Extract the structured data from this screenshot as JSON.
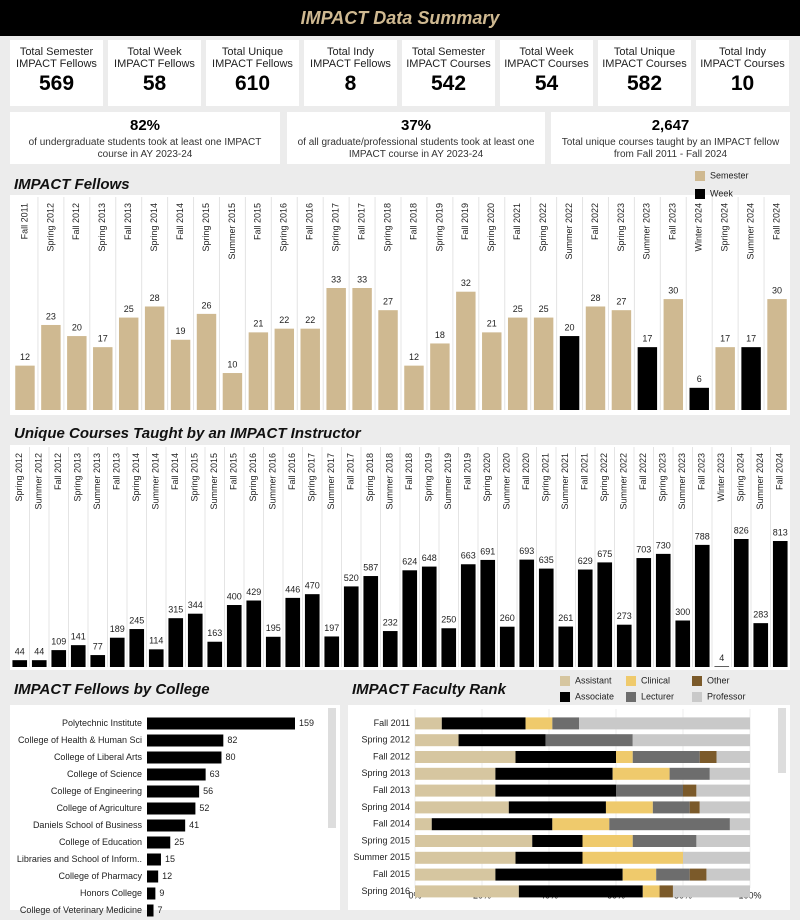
{
  "header": {
    "title": "IMPACT Data Summary"
  },
  "kpis": [
    {
      "label": "Total Semester IMPACT Fellows",
      "value": 569
    },
    {
      "label": "Total Week IMPACT Fellows",
      "value": 58
    },
    {
      "label": "Total Unique IMPACT Fellows",
      "value": 610
    },
    {
      "label": "Total Indy IMPACT Fellows",
      "value": 8
    },
    {
      "label": "Total Semester IMPACT Courses",
      "value": 542
    },
    {
      "label": "Total Week IMPACT Courses",
      "value": 54
    },
    {
      "label": "Total Unique IMPACT Courses",
      "value": 582
    },
    {
      "label": "Total Indy IMPACT Courses",
      "value": 10
    }
  ],
  "stats": [
    {
      "value": "82%",
      "text": "of undergraduate students took at least one IMPACT course in AY 2023-24"
    },
    {
      "value": "37%",
      "text": "of all graduate/professional students took at least one IMPACT course in AY 2023-24"
    },
    {
      "value": "2,647",
      "text": "Total unique courses taught by an IMPACT fellow from Fall 2011 - Fall 2024"
    }
  ],
  "chart_data": [
    {
      "type": "bar",
      "title": "IMPACT Fellows",
      "categories": [
        "Fall 2011",
        "Spring 2012",
        "Fall 2012",
        "Spring 2013",
        "Fall 2013",
        "Spring 2014",
        "Fall 2014",
        "Spring 2015",
        "Summer 2015",
        "Fall 2015",
        "Spring 2016",
        "Fall 2016",
        "Spring 2017",
        "Fall 2017",
        "Spring 2018",
        "Fall 2018",
        "Spring 2019",
        "Fall 2019",
        "Spring 2020",
        "Fall 2021",
        "Spring 2022",
        "Summer 2022",
        "Fall 2022",
        "Spring 2023",
        "Summer 2023",
        "Fall 2023",
        "Winter 2024",
        "Spring 2024",
        "Summer 2024",
        "Fall 2024"
      ],
      "series": [
        {
          "name": "Semester",
          "color": "#cfb991",
          "values": [
            12,
            23,
            20,
            17,
            25,
            28,
            19,
            26,
            10,
            21,
            22,
            22,
            33,
            33,
            27,
            12,
            18,
            32,
            21,
            25,
            25,
            null,
            28,
            27,
            null,
            30,
            null,
            17,
            null,
            30
          ]
        },
        {
          "name": "Week",
          "color": "#000000",
          "values": [
            null,
            null,
            null,
            null,
            null,
            null,
            null,
            null,
            null,
            null,
            null,
            null,
            null,
            null,
            null,
            null,
            null,
            null,
            null,
            null,
            null,
            20,
            null,
            null,
            17,
            null,
            6,
            null,
            17,
            null
          ]
        }
      ]
    },
    {
      "type": "bar",
      "title": "Unique Courses Taught by an IMPACT Instructor",
      "color": "#000000",
      "categories": [
        "Spring 2012",
        "Summer 2012",
        "Fall 2012",
        "Spring 2013",
        "Summer 2013",
        "Fall 2013",
        "Spring 2014",
        "Summer 2014",
        "Fall 2014",
        "Spring 2015",
        "Summer 2015",
        "Fall 2015",
        "Spring 2016",
        "Summer 2016",
        "Fall 2016",
        "Spring 2017",
        "Summer 2017",
        "Fall 2017",
        "Spring 2018",
        "Summer 2018",
        "Fall 2018",
        "Spring 2019",
        "Summer 2019",
        "Fall 2019",
        "Spring 2020",
        "Summer 2020",
        "Fall 2020",
        "Spring 2021",
        "Summer 2021",
        "Fall 2021",
        "Spring 2022",
        "Summer 2022",
        "Fall 2022",
        "Spring 2023",
        "Summer 2023",
        "Fall 2023",
        "Winter 2023",
        "Spring 2024",
        "Summer 2024",
        "Fall 2024"
      ],
      "values": [
        44,
        44,
        109,
        141,
        77,
        189,
        245,
        114,
        315,
        344,
        163,
        400,
        429,
        195,
        446,
        470,
        197,
        520,
        587,
        232,
        624,
        648,
        250,
        663,
        691,
        260,
        693,
        635,
        261,
        629,
        675,
        273,
        703,
        730,
        300,
        788,
        4,
        826,
        283,
        813
      ]
    },
    {
      "type": "barh",
      "title": "IMPACT Fellows by College",
      "color": "#000000",
      "categories": [
        "Polytechnic Institute",
        "College of Health & Human Sci",
        "College of Liberal Arts",
        "College of Science",
        "College of Engineering",
        "College of Agriculture",
        "Daniels School of Business",
        "College of Education",
        "Libraries and School of Inform..",
        "College of Pharmacy",
        "Honors College",
        "College of Veterinary Medicine"
      ],
      "values": [
        159,
        82,
        80,
        63,
        56,
        52,
        41,
        25,
        15,
        12,
        9,
        7
      ]
    },
    {
      "type": "stacked_barh",
      "title": "IMPACT Faculty Rank",
      "categories": [
        "Fall 2011",
        "Spring 2012",
        "Fall 2012",
        "Spring 2013",
        "Fall 2013",
        "Spring 2014",
        "Fall 2014",
        "Spring 2015",
        "Summer 2015",
        "Fall 2015",
        "Spring 2016"
      ],
      "series": [
        {
          "name": "Assistant",
          "color": "#d6c6a0",
          "values": [
            8,
            13,
            30,
            24,
            24,
            28,
            5,
            35,
            30,
            24,
            31
          ]
        },
        {
          "name": "Associate",
          "color": "#000000",
          "values": [
            25,
            26,
            30,
            35,
            36,
            29,
            36,
            15,
            20,
            38,
            37
          ]
        },
        {
          "name": "Clinical",
          "color": "#efca6c",
          "values": [
            8,
            0,
            5,
            17,
            0,
            14,
            17,
            15,
            30,
            10,
            5
          ]
        },
        {
          "name": "Lecturer",
          "color": "#6d6d6d",
          "values": [
            8,
            26,
            20,
            12,
            20,
            11,
            36,
            19,
            0,
            10,
            0
          ]
        },
        {
          "name": "Other",
          "color": "#7b5a2a",
          "values": [
            0,
            0,
            5,
            0,
            4,
            3,
            0,
            0,
            0,
            5,
            4
          ]
        },
        {
          "name": "Professor",
          "color": "#c9c9c9",
          "values": [
            51,
            35,
            10,
            12,
            16,
            15,
            6,
            16,
            20,
            13,
            23
          ]
        }
      ],
      "xlim": [
        0,
        100
      ],
      "xticks": [
        {
          "value": 0,
          "label": "0%"
        },
        {
          "value": 20,
          "label": "20%"
        },
        {
          "value": 40,
          "label": "40%"
        },
        {
          "value": 60,
          "label": "60%"
        },
        {
          "value": 80,
          "label": "80%"
        },
        {
          "value": 100,
          "label": "100%"
        }
      ]
    }
  ]
}
